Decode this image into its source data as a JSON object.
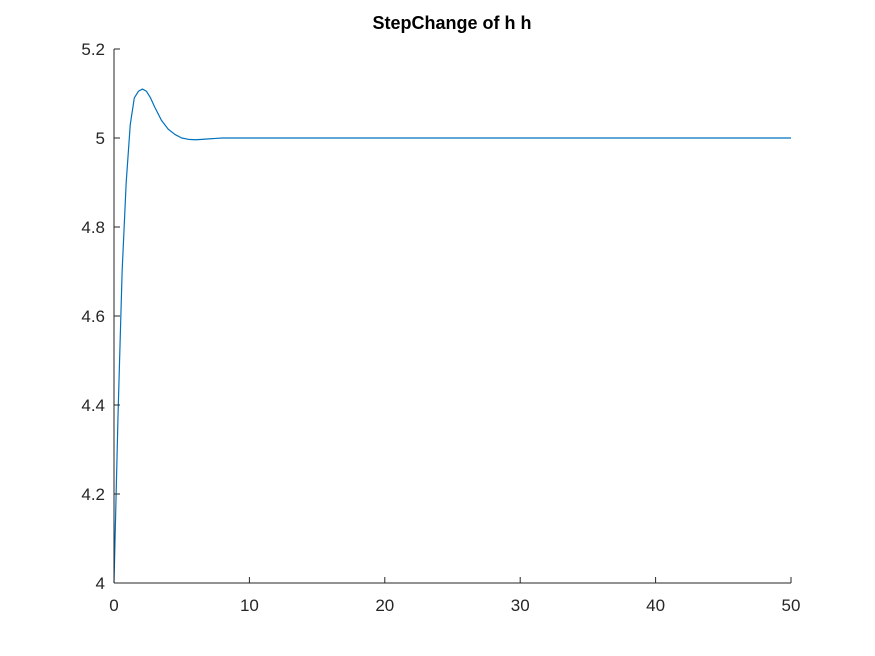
{
  "chart_data": {
    "type": "line",
    "title": "StepChange of h h",
    "xlabel": "",
    "ylabel": "",
    "xlim": [
      0,
      50
    ],
    "ylim": [
      4,
      5.2
    ],
    "xticks": [
      0,
      10,
      20,
      30,
      40,
      50
    ],
    "yticks": [
      4,
      4.2,
      4.4,
      4.6,
      4.8,
      5,
      5.2
    ],
    "xtick_labels": [
      "0",
      "10",
      "20",
      "30",
      "40",
      "50"
    ],
    "ytick_labels": [
      "4",
      "4.2",
      "4.4",
      "4.6",
      "4.8",
      "5",
      "5.2"
    ],
    "grid": false,
    "box": "axes-left-bottom",
    "series": [
      {
        "color": "#0072BD",
        "x": [
          0,
          0.3,
          0.6,
          0.9,
          1.2,
          1.5,
          1.8,
          2.1,
          2.4,
          2.7,
          3.0,
          3.5,
          4.0,
          4.5,
          5.0,
          5.5,
          6.0,
          6.5,
          7.0,
          7.5,
          8.0,
          9.0,
          10.0,
          12.0,
          15.0,
          20.0,
          30.0,
          40.0,
          50.0
        ],
        "y": [
          4.0,
          4.38,
          4.7,
          4.9,
          5.03,
          5.09,
          5.105,
          5.11,
          5.105,
          5.09,
          5.07,
          5.04,
          5.02,
          5.008,
          5.0,
          4.997,
          4.996,
          4.997,
          4.998,
          4.999,
          5.0,
          5.0,
          5.0,
          5.0,
          5.0,
          5.0,
          5.0,
          5.0,
          5.0
        ]
      }
    ]
  }
}
